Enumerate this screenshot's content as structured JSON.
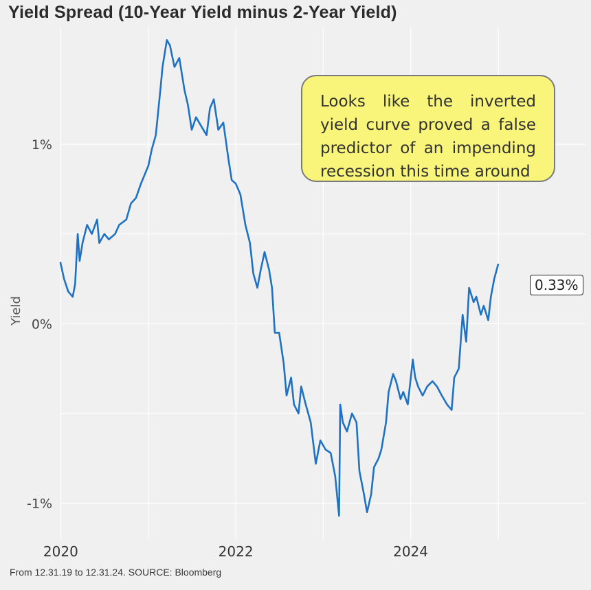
{
  "chart_data": {
    "type": "line",
    "title": "Yield Spread (10-Year Yield minus 2-Year Yield)",
    "xlabel": "",
    "ylabel": "Yield",
    "x_ticks": [
      "2020",
      "2022",
      "2024"
    ],
    "y_ticks": [
      "1%",
      "0%",
      "-1%"
    ],
    "ylim": [
      -1.2,
      1.65
    ],
    "xlim": [
      "2019-12-31",
      "2025-12-31"
    ],
    "grid": true,
    "series": [
      {
        "color": "#1f72c3",
        "x": [
          "2019-12-31",
          "2020-01-15",
          "2020-02-01",
          "2020-02-20",
          "2020-03-01",
          "2020-03-12",
          "2020-03-20",
          "2020-04-01",
          "2020-04-20",
          "2020-05-10",
          "2020-06-01",
          "2020-06-10",
          "2020-07-01",
          "2020-07-20",
          "2020-08-15",
          "2020-09-01",
          "2020-10-01",
          "2020-10-20",
          "2020-11-10",
          "2020-12-01",
          "2021-01-01",
          "2021-01-15",
          "2021-02-01",
          "2021-02-20",
          "2021-03-01",
          "2021-03-19",
          "2021-04-01",
          "2021-04-20",
          "2021-05-10",
          "2021-06-01",
          "2021-06-15",
          "2021-07-01",
          "2021-07-19",
          "2021-08-10",
          "2021-09-01",
          "2021-09-15",
          "2021-10-01",
          "2021-10-20",
          "2021-11-10",
          "2021-12-01",
          "2021-12-15",
          "2022-01-01",
          "2022-01-20",
          "2022-02-10",
          "2022-03-01",
          "2022-03-15",
          "2022-04-01",
          "2022-04-15",
          "2022-05-01",
          "2022-05-20",
          "2022-06-01",
          "2022-06-13",
          "2022-07-01",
          "2022-07-20",
          "2022-08-01",
          "2022-08-20",
          "2022-09-01",
          "2022-09-20",
          "2022-10-01",
          "2022-10-20",
          "2022-11-10",
          "2022-12-01",
          "2022-12-20",
          "2023-01-10",
          "2023-02-01",
          "2023-02-20",
          "2023-03-08",
          "2023-03-13",
          "2023-03-24",
          "2023-04-10",
          "2023-05-01",
          "2023-05-20",
          "2023-06-01",
          "2023-06-20",
          "2023-07-03",
          "2023-07-20",
          "2023-08-01",
          "2023-08-20",
          "2023-09-01",
          "2023-09-20",
          "2023-10-01",
          "2023-10-20",
          "2023-11-01",
          "2023-11-20",
          "2023-12-01",
          "2023-12-20",
          "2024-01-10",
          "2024-01-20",
          "2024-02-01",
          "2024-02-20",
          "2024-03-10",
          "2024-04-01",
          "2024-04-20",
          "2024-05-10",
          "2024-06-01",
          "2024-06-20",
          "2024-07-01",
          "2024-07-20",
          "2024-08-05",
          "2024-08-20",
          "2024-09-01",
          "2024-09-20",
          "2024-10-01",
          "2024-10-20",
          "2024-11-01",
          "2024-11-20",
          "2024-12-01",
          "2024-12-15",
          "2024-12-31"
        ],
        "values": [
          0.34,
          0.25,
          0.18,
          0.15,
          0.22,
          0.5,
          0.35,
          0.45,
          0.55,
          0.5,
          0.58,
          0.45,
          0.5,
          0.47,
          0.5,
          0.55,
          0.58,
          0.67,
          0.7,
          0.78,
          0.88,
          0.97,
          1.05,
          1.3,
          1.43,
          1.58,
          1.55,
          1.43,
          1.48,
          1.3,
          1.22,
          1.08,
          1.15,
          1.1,
          1.05,
          1.2,
          1.25,
          1.08,
          1.12,
          0.92,
          0.8,
          0.78,
          0.72,
          0.55,
          0.45,
          0.28,
          0.2,
          0.3,
          0.4,
          0.3,
          0.2,
          -0.05,
          -0.05,
          -0.22,
          -0.4,
          -0.3,
          -0.45,
          -0.5,
          -0.35,
          -0.45,
          -0.55,
          -0.78,
          -0.65,
          -0.7,
          -0.72,
          -0.85,
          -1.07,
          -0.45,
          -0.55,
          -0.6,
          -0.5,
          -0.55,
          -0.82,
          -0.95,
          -1.05,
          -0.95,
          -0.8,
          -0.75,
          -0.7,
          -0.55,
          -0.38,
          -0.28,
          -0.32,
          -0.42,
          -0.38,
          -0.45,
          -0.2,
          -0.3,
          -0.35,
          -0.4,
          -0.35,
          -0.32,
          -0.35,
          -0.4,
          -0.45,
          -0.48,
          -0.3,
          -0.25,
          0.05,
          -0.1,
          0.2,
          0.12,
          0.15,
          0.05,
          0.1,
          0.02,
          0.15,
          0.25,
          0.33
        ]
      }
    ],
    "last_value_label": "0.33%",
    "annotation": "Looks like the inverted yield curve proved a false predictor of an impending recession this time around"
  },
  "footer": {
    "source": "From 12.31.19 to 12.31.24. SOURCE: Bloomberg"
  },
  "colors": {
    "line": "#1f72c3",
    "background": "#f0f0f0",
    "callout_fill": "#f8f57a",
    "grid": "#ffffff"
  }
}
